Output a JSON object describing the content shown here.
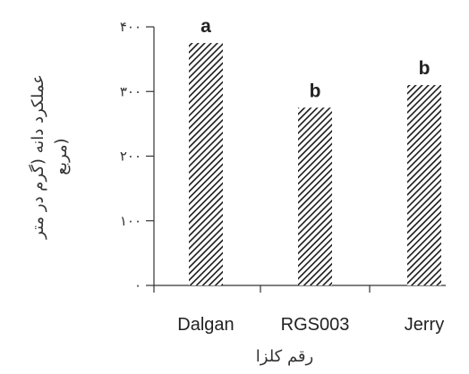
{
  "chart_data": {
    "type": "bar",
    "categories": [
      "Dalgan",
      "RGS003",
      "Jerry"
    ],
    "values": [
      375,
      275,
      310
    ],
    "significance_letters": [
      "a",
      "b",
      "b"
    ],
    "ylim": [
      0,
      400
    ],
    "yticks": [
      {
        "value": 0,
        "label": "٠"
      },
      {
        "value": 100,
        "label": "١٠٠"
      },
      {
        "value": 200,
        "label": "٢٠٠"
      },
      {
        "value": 300,
        "label": "٣٠٠"
      },
      {
        "value": 400,
        "label": "۴٠٠"
      }
    ],
    "xlabel": "رقم کلزا",
    "ylabel_line1": "عملکرد دانه (گرم در متر",
    "ylabel_line2": "مربع)",
    "bar_pattern": "diagonal-hatch",
    "colors": {
      "bar_hatch": "#1a1a1a",
      "bar_bg": "#ffffff",
      "axis": "#333333"
    },
    "grid": false,
    "legend": "none"
  }
}
